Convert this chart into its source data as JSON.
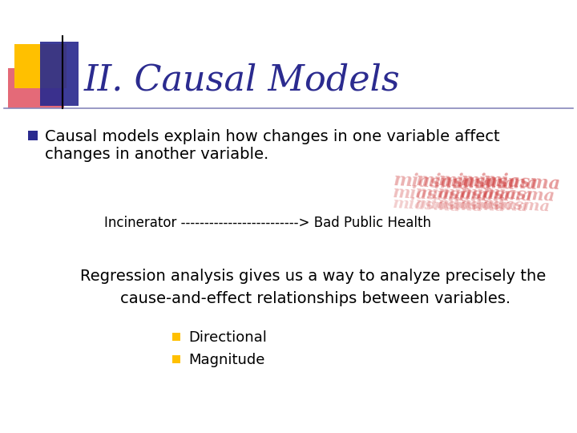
{
  "title": "II. Causal Models",
  "title_color": "#2B2B8F",
  "title_fontsize": 32,
  "background_color": "#FFFFFF",
  "bullet1_text_line1": "Causal models explain how changes in one variable affect",
  "bullet1_text_line2": "changes in another variable.",
  "bullet1_color": "#000000",
  "bullet1_fontsize": 14,
  "bullet1_marker_color": "#2B2B8F",
  "incinerator_text": "Incinerator -------------------------> Bad Public Health",
  "incinerator_fontsize": 12,
  "incinerator_color": "#000000",
  "regression_line1": "Regression analysis gives us a way to analyze precisely the",
  "regression_line2": "cause-and-effect relationships between variables.",
  "regression_color": "#000000",
  "regression_fontsize": 14,
  "sub_bullet1": "Directional",
  "sub_bullet2": "Magnitude",
  "sub_bullet_color": "#000000",
  "sub_bullet_fontsize": 13,
  "sub_bullet_marker_color": "#FFC000",
  "logo_yellow": "#FFC000",
  "logo_red": "#E05060",
  "logo_blue": "#2B2B8F",
  "logo_black_line": "#000000",
  "divider_color": "#8888BB",
  "miasma_color": "#CC3333",
  "miasma_fontsize": 16
}
